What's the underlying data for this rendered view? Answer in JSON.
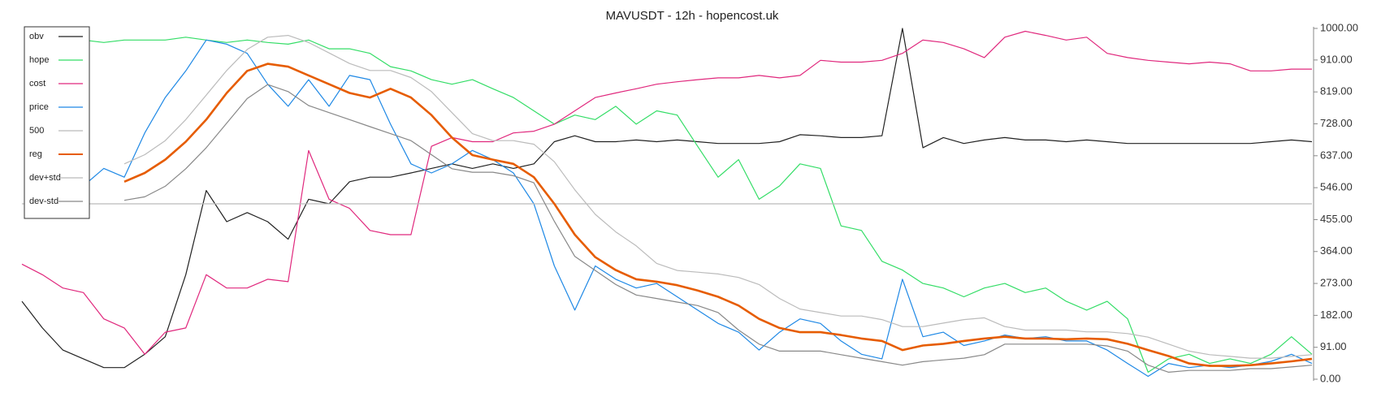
{
  "chart_data": {
    "type": "line",
    "title": "MAVUSDT - 12h - hopencost.uk",
    "legend": "top-left",
    "y_axis_side": "right",
    "ylim": [
      0,
      1000
    ],
    "yticks": [
      {
        "value": 0,
        "label": "0.00"
      },
      {
        "value": 91,
        "label": "91.00"
      },
      {
        "value": 182,
        "label": "182.00"
      },
      {
        "value": 273,
        "label": "273.00"
      },
      {
        "value": 364,
        "label": "364.00"
      },
      {
        "value": 455,
        "label": "455.00"
      },
      {
        "value": 546,
        "label": "546.00"
      },
      {
        "value": 637,
        "label": "637.00"
      },
      {
        "value": 728,
        "label": "728.00"
      },
      {
        "value": 819,
        "label": "819.00"
      },
      {
        "value": 910,
        "label": "910.00"
      },
      {
        "value": 1000,
        "label": "1000.00"
      }
    ],
    "series": [
      {
        "name": "obv",
        "color": "#222222",
        "width": 1.2,
        "values": [
          222,
          146,
          83,
          58,
          33,
          33,
          71,
          121,
          298,
          538,
          449,
          475,
          449,
          399,
          513,
          500,
          563,
          576,
          576,
          588,
          601,
          614,
          601,
          614,
          601,
          614,
          677,
          694,
          677,
          677,
          682,
          677,
          682,
          677,
          672,
          672,
          672,
          677,
          697,
          694,
          689,
          689,
          694,
          1000,
          660,
          689,
          672,
          682,
          689,
          682,
          682,
          677,
          682,
          677,
          672,
          672,
          672,
          672,
          672,
          672,
          672,
          677,
          682,
          677
        ]
      },
      {
        "name": "hope",
        "color": "#33dd66",
        "width": 1.2,
        "values": [
          null,
          null,
          null,
          967,
          960,
          967,
          967,
          967,
          975,
          967,
          960,
          967,
          960,
          955,
          967,
          942,
          942,
          929,
          891,
          879,
          854,
          841,
          854,
          828,
          803,
          765,
          727,
          753,
          740,
          778,
          727,
          765,
          753,
          664,
          576,
          626,
          513,
          551,
          614,
          601,
          437,
          424,
          336,
          311,
          273,
          260,
          235,
          260,
          273,
          247,
          260,
          222,
          197,
          222,
          172,
          20,
          58,
          71,
          45,
          58,
          45,
          71,
          121,
          71
        ]
      },
      {
        "name": "cost",
        "color": "#e0287d",
        "width": 1.2,
        "values": [
          328,
          298,
          260,
          247,
          172,
          146,
          71,
          134,
          146,
          298,
          260,
          260,
          285,
          278,
          652,
          513,
          487,
          424,
          412,
          412,
          664,
          689,
          677,
          677,
          702,
          707,
          727,
          765,
          803,
          816,
          828,
          841,
          848,
          854,
          859,
          859,
          866,
          859,
          866,
          909,
          904,
          904,
          909,
          929,
          967,
          960,
          942,
          917,
          975,
          992,
          980,
          967,
          975,
          929,
          917,
          909,
          904,
          899,
          904,
          899,
          879,
          879,
          884,
          884
        ]
      },
      {
        "name": "price",
        "color": "#1e88e5",
        "width": 1.2,
        "values": [
          null,
          null,
          null,
          551,
          601,
          576,
          702,
          803,
          879,
          967,
          955,
          929,
          841,
          778,
          854,
          778,
          866,
          854,
          727,
          614,
          588,
          614,
          652,
          626,
          588,
          500,
          323,
          197,
          323,
          285,
          260,
          273,
          235,
          197,
          159,
          134,
          83,
          134,
          172,
          159,
          109,
          71,
          58,
          285,
          121,
          134,
          96,
          109,
          126,
          116,
          121,
          109,
          109,
          83,
          45,
          8,
          45,
          33,
          40,
          33,
          40,
          51,
          71,
          45
        ]
      },
      {
        "name": "500",
        "color": "#bbbbbb",
        "width": 1.2,
        "values": [
          500,
          500,
          500,
          500,
          500,
          500,
          500,
          500,
          500,
          500,
          500,
          500,
          500,
          500,
          500,
          500,
          500,
          500,
          500,
          500,
          500,
          500,
          500,
          500,
          500,
          500,
          500,
          500,
          500,
          500,
          500,
          500,
          500,
          500,
          500,
          500,
          500,
          500,
          500,
          500,
          500,
          500,
          500,
          500,
          500,
          500,
          500,
          500,
          500,
          500,
          500,
          500,
          500,
          500,
          500,
          500,
          500,
          500,
          500,
          500,
          500,
          500,
          500,
          500
        ]
      },
      {
        "name": "reg",
        "color": "#e65c00",
        "width": 2.6,
        "values": [
          null,
          null,
          null,
          null,
          null,
          563,
          588,
          626,
          677,
          740,
          816,
          879,
          899,
          891,
          866,
          841,
          816,
          803,
          828,
          803,
          753,
          689,
          639,
          626,
          614,
          576,
          500,
          412,
          348,
          311,
          285,
          278,
          268,
          253,
          235,
          210,
          172,
          146,
          134,
          134,
          126,
          116,
          109,
          83,
          96,
          101,
          109,
          116,
          121,
          116,
          116,
          114,
          116,
          114,
          101,
          83,
          66,
          45,
          38,
          38,
          40,
          45,
          51,
          58
        ]
      },
      {
        "name": "dev+std",
        "color": "#bbbbbb",
        "width": 1.2,
        "values": [
          null,
          null,
          null,
          null,
          null,
          614,
          640,
          680,
          740,
          810,
          880,
          940,
          975,
          980,
          960,
          930,
          900,
          880,
          880,
          860,
          820,
          760,
          700,
          680,
          680,
          670,
          620,
          540,
          470,
          420,
          380,
          330,
          310,
          305,
          300,
          290,
          270,
          230,
          200,
          190,
          180,
          180,
          170,
          150,
          150,
          160,
          170,
          175,
          150,
          140,
          140,
          140,
          135,
          135,
          130,
          120,
          100,
          80,
          70,
          65,
          60,
          60,
          65,
          70
        ]
      },
      {
        "name": "dev-std",
        "color": "#888888",
        "width": 1.2,
        "values": [
          null,
          null,
          null,
          null,
          null,
          510,
          520,
          550,
          600,
          660,
          730,
          800,
          840,
          820,
          780,
          760,
          740,
          720,
          700,
          680,
          640,
          600,
          590,
          590,
          580,
          560,
          450,
          350,
          310,
          270,
          240,
          230,
          220,
          210,
          190,
          140,
          100,
          80,
          80,
          80,
          70,
          60,
          50,
          40,
          50,
          55,
          60,
          70,
          100,
          100,
          100,
          100,
          100,
          95,
          80,
          40,
          20,
          25,
          25,
          25,
          30,
          30,
          35,
          40
        ]
      }
    ]
  }
}
